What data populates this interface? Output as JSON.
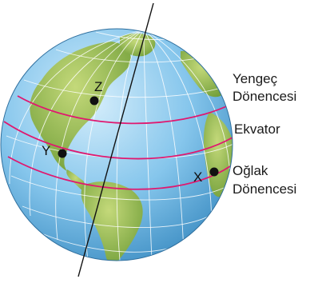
{
  "labels": {
    "tropic_cancer_line1": "Yengeç",
    "tropic_cancer_line2": "Dönencesi",
    "equator": "Ekvator",
    "tropic_capricorn_line1": "Oğlak",
    "tropic_capricorn_line2": "Dönencesi"
  },
  "points": {
    "z": "Z",
    "y": "Y",
    "x": "X"
  },
  "colors": {
    "ocean": "#7cc0e8",
    "ocean_light": "#cfe9f8",
    "land": "#7fae3c",
    "land_light": "#b9d06a",
    "gridline": "#ffffff",
    "tropic_lines": "#e0186f",
    "axis": "#111111"
  }
}
